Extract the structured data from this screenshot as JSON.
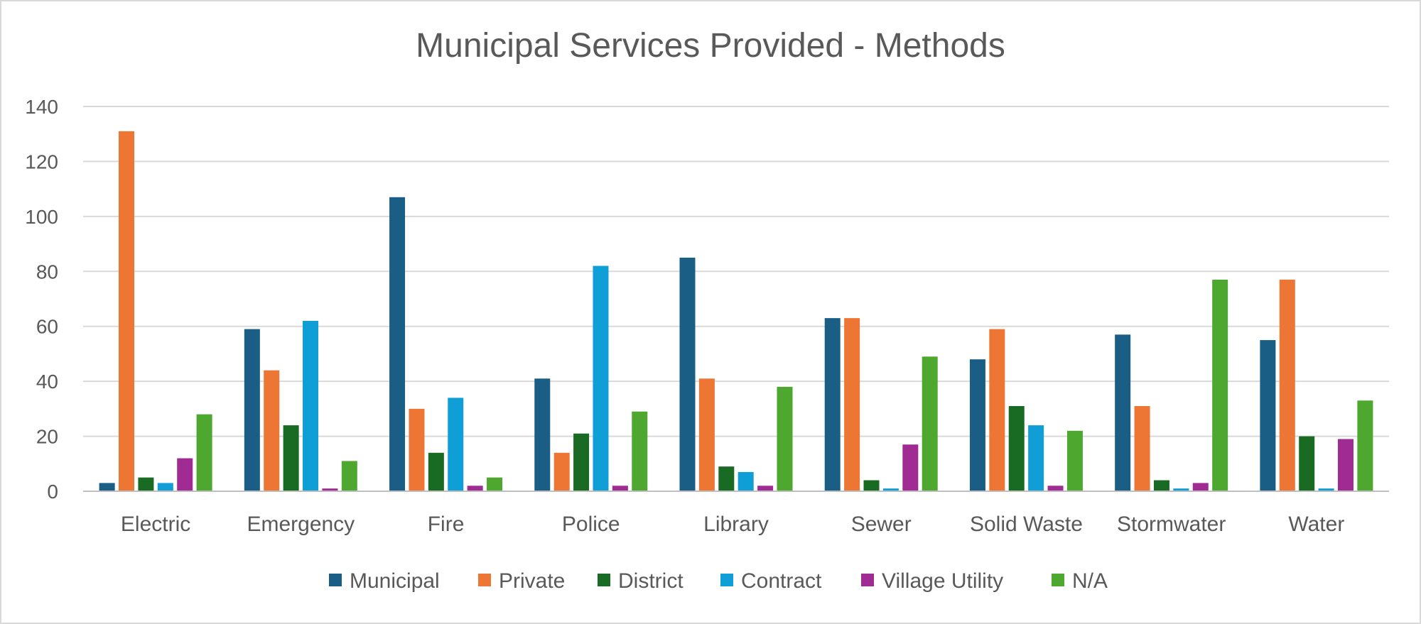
{
  "chart_data": {
    "type": "bar",
    "title": "Municipal Services Provided - Methods",
    "xlabel": "",
    "ylabel": "",
    "ylim": [
      0,
      140
    ],
    "yticks": [
      0,
      20,
      40,
      60,
      80,
      100,
      120,
      140
    ],
    "grid": true,
    "legend_position": "bottom",
    "categories": [
      "Electric",
      "Emergency",
      "Fire",
      "Police",
      "Library",
      "Sewer",
      "Solid Waste",
      "Stormwater",
      "Water"
    ],
    "series": [
      {
        "name": "Municipal",
        "color": "#1b5e85",
        "values": [
          3,
          59,
          107,
          41,
          85,
          63,
          48,
          57,
          55
        ]
      },
      {
        "name": "Private",
        "color": "#ee7634",
        "values": [
          131,
          44,
          30,
          14,
          41,
          63,
          59,
          31,
          77
        ]
      },
      {
        "name": "District",
        "color": "#196b24",
        "values": [
          5,
          24,
          14,
          21,
          9,
          4,
          31,
          4,
          20
        ]
      },
      {
        "name": "Contract",
        "color": "#0f9ed5",
        "values": [
          3,
          62,
          34,
          82,
          7,
          1,
          24,
          1,
          1
        ]
      },
      {
        "name": "Village Utility",
        "color": "#a02b93",
        "values": [
          12,
          1,
          2,
          2,
          2,
          17,
          2,
          3,
          19
        ]
      },
      {
        "name": "N/A",
        "color": "#4ea72e",
        "values": [
          28,
          11,
          5,
          29,
          38,
          49,
          22,
          77,
          33
        ]
      }
    ]
  }
}
